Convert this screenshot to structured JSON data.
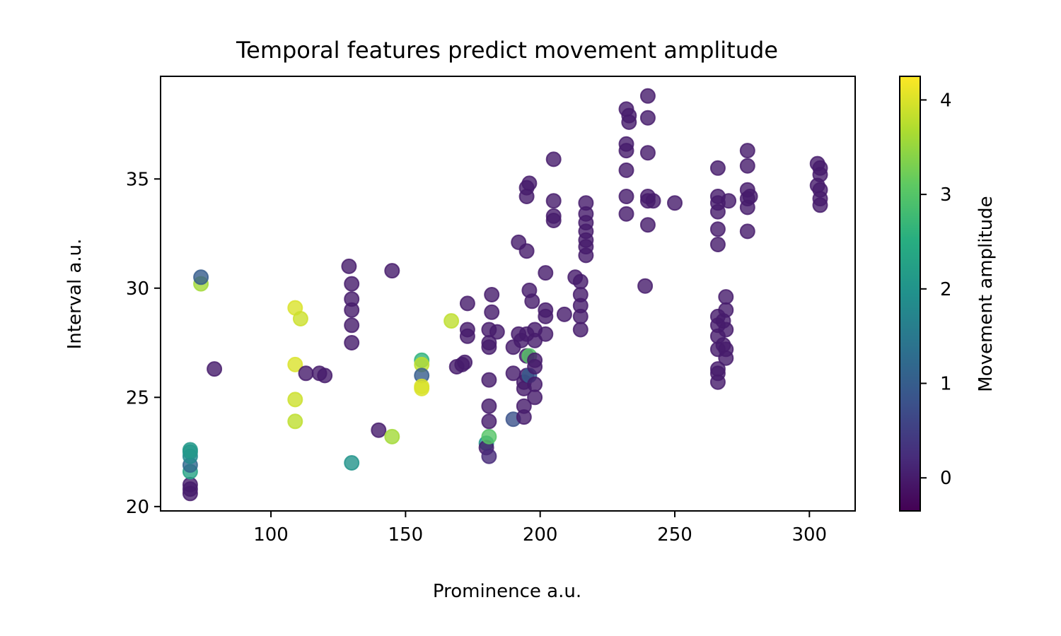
{
  "chart_data": {
    "type": "scatter",
    "title": "Temporal features predict movement amplitude",
    "xlabel": "Prominence a.u.",
    "ylabel": "Interval a.u.",
    "xlim": [
      59,
      317
    ],
    "ylim": [
      19.8,
      39.7
    ],
    "xticks": [
      100,
      150,
      200,
      250,
      300
    ],
    "yticks": [
      20,
      25,
      30,
      35
    ],
    "grid": false,
    "colorbar": {
      "label": "Movement amplitude",
      "colormap": "viridis",
      "range": [
        -0.35,
        4.25
      ],
      "ticks": [
        0,
        1,
        2,
        3,
        4
      ]
    },
    "points": [
      {
        "x": 70,
        "y": 20.6,
        "c": 0
      },
      {
        "x": 70,
        "y": 20.8,
        "c": 0
      },
      {
        "x": 70,
        "y": 21.0,
        "c": 0
      },
      {
        "x": 70,
        "y": 21.6,
        "c": 2.3
      },
      {
        "x": 70,
        "y": 21.9,
        "c": 1.2
      },
      {
        "x": 70,
        "y": 22.3,
        "c": 1.8
      },
      {
        "x": 70,
        "y": 22.5,
        "c": 2.0
      },
      {
        "x": 70,
        "y": 22.6,
        "c": 2.1
      },
      {
        "x": 74,
        "y": 30.2,
        "c": 3.6
      },
      {
        "x": 74,
        "y": 30.5,
        "c": 1.0
      },
      {
        "x": 79,
        "y": 26.3,
        "c": 0
      },
      {
        "x": 109,
        "y": 29.1,
        "c": 4.0
      },
      {
        "x": 111,
        "y": 28.6,
        "c": 3.9
      },
      {
        "x": 109,
        "y": 26.5,
        "c": 4.0
      },
      {
        "x": 109,
        "y": 24.9,
        "c": 3.9
      },
      {
        "x": 109,
        "y": 23.9,
        "c": 3.8
      },
      {
        "x": 113,
        "y": 26.1,
        "c": 0
      },
      {
        "x": 118,
        "y": 26.1,
        "c": 0
      },
      {
        "x": 120,
        "y": 26.0,
        "c": 0
      },
      {
        "x": 129,
        "y": 31.0,
        "c": 0
      },
      {
        "x": 130,
        "y": 30.2,
        "c": 0
      },
      {
        "x": 130,
        "y": 29.5,
        "c": 0
      },
      {
        "x": 130,
        "y": 29.0,
        "c": 0
      },
      {
        "x": 130,
        "y": 28.3,
        "c": 0
      },
      {
        "x": 130,
        "y": 27.5,
        "c": 0
      },
      {
        "x": 130,
        "y": 22.0,
        "c": 2.0
      },
      {
        "x": 140,
        "y": 23.5,
        "c": 0
      },
      {
        "x": 145,
        "y": 30.8,
        "c": 0
      },
      {
        "x": 145,
        "y": 23.2,
        "c": 3.6
      },
      {
        "x": 156,
        "y": 26.7,
        "c": 2.6
      },
      {
        "x": 156,
        "y": 26.5,
        "c": 3.8
      },
      {
        "x": 156,
        "y": 26.0,
        "c": 1.0
      },
      {
        "x": 156,
        "y": 25.5,
        "c": 4.0
      },
      {
        "x": 156,
        "y": 25.4,
        "c": 4.0
      },
      {
        "x": 167,
        "y": 28.5,
        "c": 3.8
      },
      {
        "x": 169,
        "y": 26.4,
        "c": 0
      },
      {
        "x": 171,
        "y": 26.5,
        "c": 0
      },
      {
        "x": 172,
        "y": 26.6,
        "c": 0
      },
      {
        "x": 173,
        "y": 29.3,
        "c": 0
      },
      {
        "x": 173,
        "y": 28.1,
        "c": 0
      },
      {
        "x": 173,
        "y": 27.8,
        "c": 0
      },
      {
        "x": 180,
        "y": 22.9,
        "c": 2.0
      },
      {
        "x": 180,
        "y": 22.7,
        "c": 0
      },
      {
        "x": 181,
        "y": 22.3,
        "c": 0.2
      },
      {
        "x": 181,
        "y": 23.2,
        "c": 3.0
      },
      {
        "x": 181,
        "y": 23.9,
        "c": 0
      },
      {
        "x": 181,
        "y": 24.6,
        "c": 0
      },
      {
        "x": 181,
        "y": 25.8,
        "c": 0
      },
      {
        "x": 181,
        "y": 27.3,
        "c": 0
      },
      {
        "x": 181,
        "y": 27.5,
        "c": 0
      },
      {
        "x": 181,
        "y": 28.1,
        "c": 0
      },
      {
        "x": 182,
        "y": 28.9,
        "c": 0
      },
      {
        "x": 182,
        "y": 29.7,
        "c": 0
      },
      {
        "x": 184,
        "y": 28.0,
        "c": 0
      },
      {
        "x": 190,
        "y": 24.0,
        "c": 0.8
      },
      {
        "x": 190,
        "y": 26.1,
        "c": 0
      },
      {
        "x": 190,
        "y": 27.3,
        "c": 0
      },
      {
        "x": 192,
        "y": 32.1,
        "c": 0
      },
      {
        "x": 192,
        "y": 27.9,
        "c": 0
      },
      {
        "x": 193,
        "y": 27.6,
        "c": 0
      },
      {
        "x": 194,
        "y": 24.1,
        "c": 0
      },
      {
        "x": 194,
        "y": 24.6,
        "c": 0
      },
      {
        "x": 194,
        "y": 25.4,
        "c": 0
      },
      {
        "x": 194,
        "y": 25.7,
        "c": 0
      },
      {
        "x": 195,
        "y": 26.0,
        "c": 0
      },
      {
        "x": 195,
        "y": 26.9,
        "c": 0
      },
      {
        "x": 195,
        "y": 27.9,
        "c": 0
      },
      {
        "x": 195,
        "y": 31.7,
        "c": 0
      },
      {
        "x": 195,
        "y": 34.2,
        "c": 0
      },
      {
        "x": 195,
        "y": 34.6,
        "c": 0
      },
      {
        "x": 196,
        "y": 34.8,
        "c": 0
      },
      {
        "x": 196,
        "y": 29.9,
        "c": 0
      },
      {
        "x": 196,
        "y": 26.9,
        "c": 3.0
      },
      {
        "x": 196,
        "y": 26.0,
        "c": 1.0
      },
      {
        "x": 197,
        "y": 29.4,
        "c": 0
      },
      {
        "x": 198,
        "y": 28.1,
        "c": 0
      },
      {
        "x": 198,
        "y": 27.6,
        "c": 0
      },
      {
        "x": 198,
        "y": 26.7,
        "c": 0
      },
      {
        "x": 198,
        "y": 26.4,
        "c": 0
      },
      {
        "x": 198,
        "y": 25.6,
        "c": 0
      },
      {
        "x": 198,
        "y": 25.0,
        "c": 0
      },
      {
        "x": 202,
        "y": 30.7,
        "c": 0
      },
      {
        "x": 202,
        "y": 29.0,
        "c": 0
      },
      {
        "x": 202,
        "y": 28.7,
        "c": 0
      },
      {
        "x": 202,
        "y": 27.9,
        "c": 0
      },
      {
        "x": 205,
        "y": 35.9,
        "c": 0
      },
      {
        "x": 205,
        "y": 34.0,
        "c": 0
      },
      {
        "x": 205,
        "y": 33.3,
        "c": 0
      },
      {
        "x": 205,
        "y": 33.1,
        "c": 0
      },
      {
        "x": 209,
        "y": 28.8,
        "c": 0
      },
      {
        "x": 213,
        "y": 30.5,
        "c": 0
      },
      {
        "x": 215,
        "y": 30.3,
        "c": 0
      },
      {
        "x": 215,
        "y": 29.7,
        "c": 0
      },
      {
        "x": 215,
        "y": 29.2,
        "c": 0
      },
      {
        "x": 215,
        "y": 28.7,
        "c": 0
      },
      {
        "x": 215,
        "y": 28.1,
        "c": 0
      },
      {
        "x": 217,
        "y": 33.9,
        "c": 0
      },
      {
        "x": 217,
        "y": 33.4,
        "c": 0
      },
      {
        "x": 217,
        "y": 33.0,
        "c": 0
      },
      {
        "x": 217,
        "y": 32.6,
        "c": 0
      },
      {
        "x": 217,
        "y": 32.2,
        "c": 0
      },
      {
        "x": 217,
        "y": 31.9,
        "c": 0
      },
      {
        "x": 217,
        "y": 31.5,
        "c": 0
      },
      {
        "x": 232,
        "y": 38.2,
        "c": 0
      },
      {
        "x": 233,
        "y": 37.9,
        "c": 0
      },
      {
        "x": 233,
        "y": 37.6,
        "c": 0
      },
      {
        "x": 232,
        "y": 36.6,
        "c": 0
      },
      {
        "x": 232,
        "y": 36.3,
        "c": 0
      },
      {
        "x": 232,
        "y": 35.4,
        "c": 0
      },
      {
        "x": 232,
        "y": 34.2,
        "c": 0
      },
      {
        "x": 232,
        "y": 33.4,
        "c": 0
      },
      {
        "x": 239,
        "y": 30.1,
        "c": 0
      },
      {
        "x": 240,
        "y": 38.8,
        "c": 0
      },
      {
        "x": 240,
        "y": 37.8,
        "c": 0
      },
      {
        "x": 240,
        "y": 36.2,
        "c": 0
      },
      {
        "x": 240,
        "y": 34.2,
        "c": 0
      },
      {
        "x": 240,
        "y": 34.0,
        "c": 0
      },
      {
        "x": 240,
        "y": 32.9,
        "c": 0
      },
      {
        "x": 242,
        "y": 34.0,
        "c": 0
      },
      {
        "x": 250,
        "y": 33.9,
        "c": 0
      },
      {
        "x": 266,
        "y": 35.5,
        "c": 0
      },
      {
        "x": 266,
        "y": 34.2,
        "c": 0
      },
      {
        "x": 266,
        "y": 33.9,
        "c": 0
      },
      {
        "x": 266,
        "y": 33.5,
        "c": 0
      },
      {
        "x": 266,
        "y": 32.7,
        "c": 0
      },
      {
        "x": 266,
        "y": 32.0,
        "c": 0
      },
      {
        "x": 266,
        "y": 28.7,
        "c": 0
      },
      {
        "x": 266,
        "y": 28.3,
        "c": 0
      },
      {
        "x": 266,
        "y": 27.8,
        "c": 0
      },
      {
        "x": 266,
        "y": 27.2,
        "c": 0
      },
      {
        "x": 266,
        "y": 26.3,
        "c": 0
      },
      {
        "x": 266,
        "y": 26.1,
        "c": 0
      },
      {
        "x": 266,
        "y": 25.7,
        "c": 0
      },
      {
        "x": 268,
        "y": 28.5,
        "c": 0
      },
      {
        "x": 268,
        "y": 27.4,
        "c": 0
      },
      {
        "x": 269,
        "y": 29.6,
        "c": 0
      },
      {
        "x": 269,
        "y": 29.0,
        "c": 0
      },
      {
        "x": 269,
        "y": 28.1,
        "c": 0
      },
      {
        "x": 269,
        "y": 27.2,
        "c": 0
      },
      {
        "x": 269,
        "y": 26.8,
        "c": 0
      },
      {
        "x": 270,
        "y": 34.0,
        "c": 0
      },
      {
        "x": 277,
        "y": 36.3,
        "c": 0
      },
      {
        "x": 277,
        "y": 35.6,
        "c": 0
      },
      {
        "x": 277,
        "y": 34.5,
        "c": 0
      },
      {
        "x": 277,
        "y": 34.1,
        "c": 0
      },
      {
        "x": 277,
        "y": 33.7,
        "c": 0
      },
      {
        "x": 277,
        "y": 32.6,
        "c": 0
      },
      {
        "x": 278,
        "y": 34.2,
        "c": 0
      },
      {
        "x": 303,
        "y": 35.7,
        "c": 0
      },
      {
        "x": 304,
        "y": 35.5,
        "c": 0
      },
      {
        "x": 304,
        "y": 35.2,
        "c": 0
      },
      {
        "x": 303,
        "y": 34.7,
        "c": 0
      },
      {
        "x": 304,
        "y": 34.5,
        "c": 0
      },
      {
        "x": 304,
        "y": 34.1,
        "c": 0
      },
      {
        "x": 304,
        "y": 33.8,
        "c": 0
      }
    ]
  }
}
